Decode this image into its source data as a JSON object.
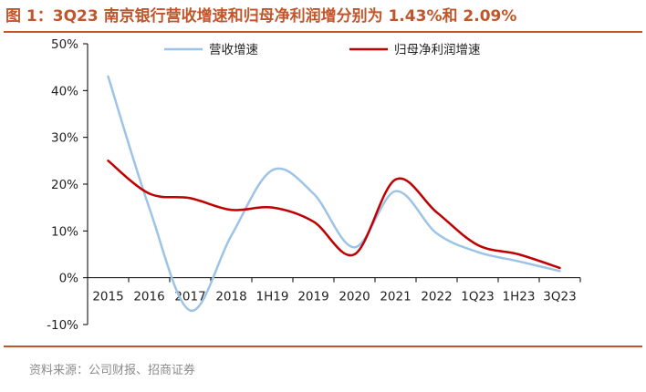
{
  "colors": {
    "accent": "#c0562a",
    "series_revenue": "#9dc3e6",
    "series_profit": "#c00000",
    "axis": "#000000",
    "text": "#222222",
    "source": "#8a8a8a"
  },
  "header": {
    "title": "图 1：3Q23 南京银行营收增速和归母净利润增分别为 1.43%和 2.09%"
  },
  "footer": {
    "source": "资料来源：公司财报、招商证券"
  },
  "chart_data": {
    "type": "line",
    "title": "",
    "xlabel": "",
    "ylabel": "",
    "categories": [
      "2015",
      "2016",
      "2017",
      "2018",
      "1H19",
      "2019",
      "2020",
      "2021",
      "2022",
      "1Q23",
      "1H23",
      "3Q23"
    ],
    "ylim": [
      -10,
      50
    ],
    "yticks": [
      -10,
      0,
      10,
      20,
      30,
      40,
      50
    ],
    "ytick_labels": [
      "-10%",
      "0%",
      "10%",
      "20%",
      "30%",
      "40%",
      "50%"
    ],
    "grid": false,
    "smooth": true,
    "legend_position": "top",
    "series": [
      {
        "name": "营收增速",
        "color": "#9dc3e6",
        "values": [
          43.0,
          15.0,
          -7.0,
          9.0,
          23.0,
          18.0,
          6.5,
          18.5,
          9.5,
          5.5,
          3.5,
          1.43
        ]
      },
      {
        "name": "归母净利润增速",
        "color": "#c00000",
        "values": [
          25.0,
          18.0,
          17.0,
          14.5,
          15.0,
          12.0,
          5.0,
          21.0,
          14.0,
          7.0,
          5.0,
          2.09
        ]
      }
    ]
  }
}
